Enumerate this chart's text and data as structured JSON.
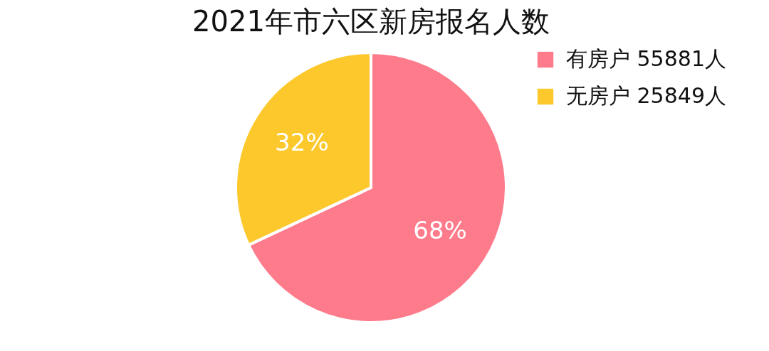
{
  "chart_data": {
    "type": "pie",
    "title": "2021年市六区新房报名人数",
    "categories": [
      "有房户 55881人",
      "无房户 25849人"
    ],
    "values": [
      68,
      32
    ],
    "colors": [
      "#fe7b8b",
      "#fcc82b"
    ],
    "value_labels": [
      "68%",
      "32%"
    ],
    "legend": "right"
  }
}
